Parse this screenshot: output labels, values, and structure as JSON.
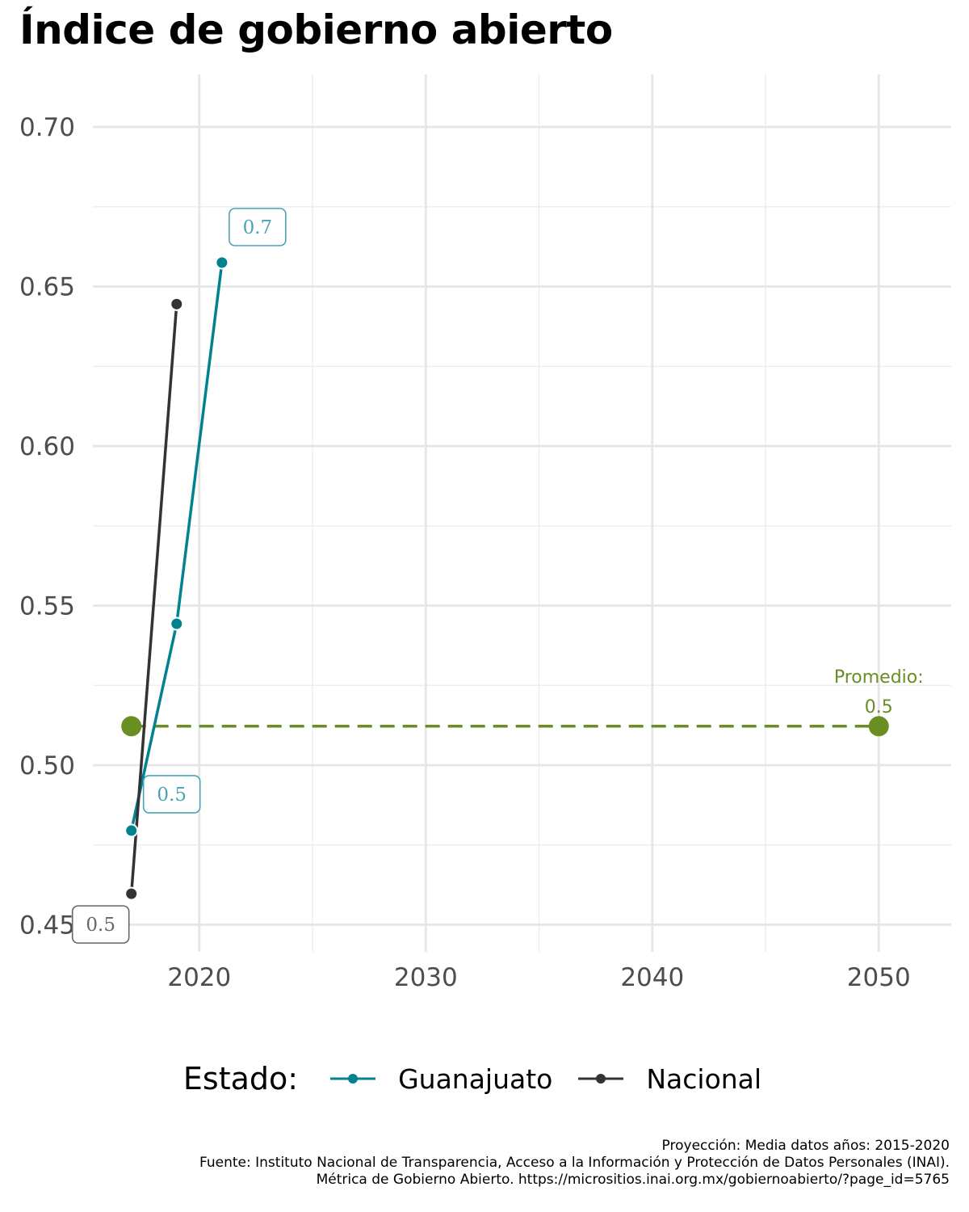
{
  "title": "Índice de gobierno abierto",
  "legend": {
    "title": "Estado:",
    "items": [
      {
        "label": "Guanajuato",
        "color": "#00838f"
      },
      {
        "label": "Nacional",
        "color": "#333333"
      }
    ]
  },
  "caption": [
    "Proyección: Media datos años: 2015-2020",
    "Fuente: Instituto Nacional de Transparencia, Acceso a la Información y Protección de Datos Personales (INAI).",
    "Métrica de Gobierno Abierto. https://micrositios.inai.org.mx/gobiernoabierto/?page_id=5765"
  ],
  "chart_data": {
    "type": "line",
    "title": "Índice de gobierno abierto",
    "xlabel": "",
    "ylabel": "",
    "xlim": [
      2015.3,
      2053.2
    ],
    "ylim": [
      0.4415,
      0.7165
    ],
    "x_ticks": [
      2020,
      2030,
      2040,
      2050
    ],
    "x_tick_labels": [
      "2020",
      "2030",
      "2040",
      "2050"
    ],
    "y_ticks": [
      0.45,
      0.5,
      0.55,
      0.6,
      0.65,
      0.7
    ],
    "y_tick_labels": [
      "0.45",
      "0.50",
      "0.55",
      "0.60",
      "0.65",
      "0.70"
    ],
    "grid": true,
    "legend_position": "bottom",
    "series": [
      {
        "name": "Guanajuato",
        "color": "#00838f",
        "label_color": "#4aa3b5",
        "x": [
          2017,
          2019,
          2021
        ],
        "y": [
          0.4795,
          0.5443,
          0.6575
        ],
        "labels": [
          {
            "text": "0.5",
            "x": 2017,
            "y": 0.4795
          },
          {
            "text": "0.7",
            "x": 2021,
            "y": 0.6575
          }
        ]
      },
      {
        "name": "Nacional",
        "color": "#333333",
        "label_color": "#666666",
        "x": [
          2017,
          2019
        ],
        "y": [
          0.4597,
          0.6445
        ],
        "labels": [
          {
            "text": "0.5",
            "x": 2017,
            "y": 0.4597
          }
        ]
      }
    ],
    "projection": {
      "color": "#6b8e23",
      "x": [
        2017,
        2050
      ],
      "y": [
        0.5122,
        0.5122
      ],
      "annotation": [
        "Promedio:",
        "0.5"
      ]
    }
  }
}
